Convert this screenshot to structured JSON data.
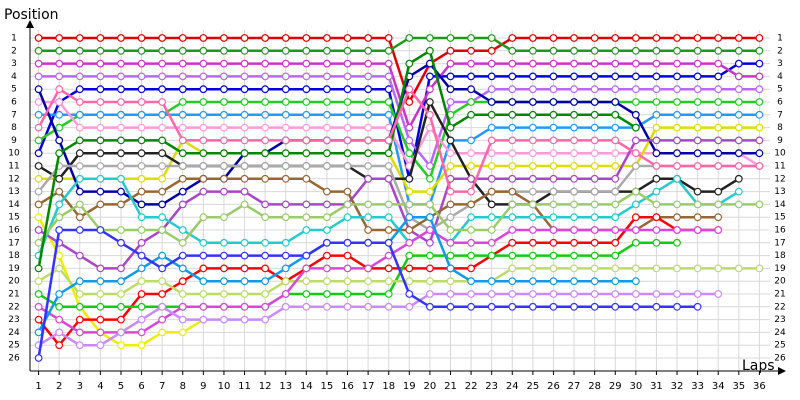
{
  "chart_data": {
    "type": "line",
    "ylabel": "Position",
    "xlabel": "Laps",
    "x": [
      1,
      2,
      3,
      4,
      5,
      6,
      7,
      8,
      9,
      10,
      11,
      12,
      13,
      14,
      15,
      16,
      17,
      18,
      19,
      20,
      21,
      22,
      23,
      24,
      25,
      26,
      27,
      28,
      29,
      30,
      31,
      32,
      33,
      34,
      35,
      36
    ],
    "xlim": [
      0,
      37
    ],
    "ylim": [
      0,
      27
    ],
    "y_inverted": true,
    "grid": true,
    "xticks": [
      1,
      2,
      3,
      4,
      5,
      6,
      7,
      8,
      9,
      10,
      11,
      12,
      13,
      14,
      15,
      16,
      17,
      18,
      19,
      20,
      21,
      22,
      23,
      24,
      25,
      26,
      27,
      28,
      29,
      30,
      31,
      32,
      33,
      34,
      35,
      36
    ],
    "yticks": [
      1,
      2,
      3,
      4,
      5,
      6,
      7,
      8,
      9,
      10,
      11,
      12,
      13,
      14,
      15,
      16,
      17,
      18,
      19,
      20,
      21,
      22,
      23,
      24,
      25,
      26
    ],
    "series": [
      {
        "color": "#e00000",
        "values": [
          1,
          1,
          1,
          1,
          1,
          1,
          1,
          1,
          1,
          1,
          1,
          1,
          1,
          1,
          1,
          1,
          1,
          1,
          6,
          3,
          2,
          2,
          2,
          1,
          1,
          1,
          1,
          1,
          1,
          1,
          1,
          1,
          1,
          1,
          1,
          1
        ]
      },
      {
        "color": "#1a9a1a",
        "values": [
          2,
          2,
          2,
          2,
          2,
          2,
          2,
          2,
          2,
          2,
          2,
          2,
          2,
          2,
          2,
          2,
          2,
          2,
          1,
          1,
          1,
          1,
          1,
          2,
          2,
          2,
          2,
          2,
          2,
          2,
          2,
          2,
          2,
          2,
          2,
          2
        ]
      },
      {
        "color": "#0000e0",
        "values": [
          10,
          6,
          5,
          5,
          5,
          5,
          5,
          5,
          5,
          5,
          5,
          5,
          5,
          5,
          5,
          5,
          5,
          5,
          12,
          4,
          4,
          4,
          4,
          4,
          4,
          4,
          4,
          4,
          4,
          4,
          4,
          4,
          4,
          4,
          3,
          3
        ]
      },
      {
        "color": "#cc33cc",
        "values": [
          3,
          3,
          3,
          3,
          3,
          3,
          3,
          3,
          3,
          3,
          3,
          3,
          3,
          3,
          3,
          3,
          3,
          3,
          8,
          5,
          3,
          3,
          3,
          3,
          3,
          3,
          3,
          3,
          3,
          3,
          3,
          3,
          3,
          3,
          4,
          4
        ]
      },
      {
        "color": "#bb66ff",
        "values": [
          4,
          4,
          4,
          4,
          4,
          4,
          4,
          4,
          4,
          4,
          4,
          4,
          4,
          4,
          4,
          4,
          4,
          4,
          9,
          11,
          6,
          6,
          5,
          5,
          5,
          5,
          5,
          5,
          5,
          5,
          5,
          5,
          5,
          5,
          5,
          5
        ]
      },
      {
        "color": "#22cc22",
        "values": [
          9,
          8,
          7,
          7,
          7,
          7,
          7,
          6,
          6,
          6,
          6,
          6,
          6,
          6,
          6,
          6,
          6,
          6,
          10,
          12,
          7,
          6,
          6,
          6,
          6,
          6,
          6,
          6,
          6,
          6,
          6,
          6,
          6,
          6,
          6,
          6
        ]
      },
      {
        "color": "#2299ff",
        "values": [
          7,
          7,
          7,
          7,
          7,
          7,
          7,
          7,
          7,
          7,
          7,
          7,
          7,
          7,
          7,
          7,
          7,
          7,
          14,
          14,
          9,
          9,
          8,
          8,
          8,
          8,
          8,
          8,
          8,
          8,
          7,
          7,
          7,
          7,
          7,
          7
        ]
      },
      {
        "color": "#ff99dd",
        "values": [
          6,
          6,
          8,
          8,
          8,
          8,
          8,
          8,
          8,
          8,
          8,
          8,
          8,
          8,
          8,
          8,
          8,
          8,
          11,
          8,
          10,
          10,
          10,
          10,
          10,
          10,
          10,
          10,
          10,
          10,
          10,
          10,
          10,
          10,
          10,
          11
        ]
      },
      {
        "color": "#eeee00",
        "values": [
          15,
          18,
          22,
          24,
          25,
          25,
          24,
          24,
          23,
          null,
          null,
          null,
          null,
          null,
          null,
          null,
          null,
          null,
          null,
          null,
          null,
          null,
          null,
          null,
          null,
          null,
          null,
          null,
          null,
          null,
          null,
          null,
          null,
          null,
          null,
          null
        ]
      },
      {
        "color": "#dddd00",
        "values": [
          12,
          12,
          12,
          12,
          12,
          12,
          12,
          9,
          10,
          10,
          10,
          10,
          10,
          10,
          10,
          10,
          10,
          10,
          13,
          13,
          11,
          11,
          11,
          11,
          11,
          11,
          11,
          11,
          11,
          11,
          8,
          8,
          8,
          8,
          8,
          8
        ]
      },
      {
        "color": "#0000aa",
        "values": [
          5,
          9,
          13,
          13,
          13,
          14,
          14,
          13,
          12,
          12,
          10,
          10,
          9,
          9,
          9,
          9,
          9,
          9,
          4,
          3,
          5,
          5,
          6,
          6,
          6,
          6,
          6,
          6,
          6,
          7,
          10,
          10,
          10,
          10,
          10,
          10
        ]
      },
      {
        "color": "#222222",
        "values": [
          11,
          12,
          10,
          10,
          10,
          10,
          10,
          11,
          11,
          11,
          11,
          11,
          11,
          11,
          11,
          11,
          12,
          12,
          12,
          6,
          9,
          12,
          14,
          14,
          14,
          13,
          13,
          13,
          13,
          13,
          12,
          12,
          13,
          13,
          12,
          null
        ]
      },
      {
        "color": "#aa44cc",
        "values": [
          16,
          17,
          18,
          19,
          19,
          17,
          16,
          14,
          13,
          13,
          13,
          14,
          14,
          14,
          14,
          14,
          12,
          12,
          16,
          17,
          12,
          12,
          12,
          12,
          12,
          12,
          12,
          12,
          12,
          9,
          9,
          9,
          9,
          9,
          9,
          9
        ]
      },
      {
        "color": "#aaaaaa",
        "values": [
          13,
          11,
          11,
          11,
          11,
          11,
          11,
          11,
          11,
          11,
          11,
          11,
          11,
          11,
          11,
          11,
          11,
          11,
          15,
          16,
          15,
          14,
          13,
          13,
          13,
          13,
          13,
          13,
          13,
          11,
          11,
          11,
          11,
          11,
          11,
          11
        ]
      },
      {
        "color": "#996633",
        "values": [
          14,
          13,
          15,
          14,
          14,
          13,
          13,
          12,
          12,
          12,
          12,
          12,
          12,
          12,
          13,
          13,
          16,
          16,
          16,
          15,
          14,
          14,
          13,
          13,
          14,
          16,
          16,
          16,
          16,
          16,
          15,
          15,
          15,
          15,
          null,
          null
        ]
      },
      {
        "color": "#22cccc",
        "values": [
          18,
          14,
          12,
          12,
          12,
          15,
          15,
          16,
          17,
          17,
          17,
          17,
          17,
          16,
          16,
          15,
          15,
          15,
          17,
          16,
          17,
          15,
          15,
          15,
          15,
          15,
          15,
          15,
          15,
          14,
          13,
          12,
          14,
          14,
          13,
          null
        ]
      },
      {
        "color": "#99cc66",
        "values": [
          17,
          15,
          14,
          16,
          16,
          16,
          16,
          17,
          15,
          15,
          14,
          15,
          15,
          15,
          15,
          14,
          14,
          14,
          14,
          14,
          16,
          16,
          16,
          14,
          14,
          14,
          14,
          14,
          14,
          13,
          14,
          14,
          14,
          14,
          14,
          14
        ]
      },
      {
        "color": "#ff0000",
        "values": [
          23,
          25,
          23,
          23,
          23,
          21,
          21,
          20,
          19,
          19,
          19,
          19,
          20,
          19,
          18,
          18,
          19,
          19,
          19,
          19,
          19,
          19,
          18,
          17,
          17,
          17,
          17,
          17,
          17,
          15,
          15,
          16,
          16,
          16,
          null,
          null
        ]
      },
      {
        "color": "#11cc11",
        "values": [
          21,
          22,
          22,
          22,
          22,
          22,
          22,
          22,
          22,
          22,
          22,
          22,
          21,
          21,
          21,
          21,
          21,
          21,
          18,
          18,
          18,
          18,
          18,
          18,
          18,
          18,
          18,
          18,
          18,
          17,
          17,
          17,
          null,
          null,
          null,
          null
        ]
      },
      {
        "color": "#bbdd66",
        "values": [
          20,
          19,
          21,
          21,
          21,
          20,
          20,
          21,
          21,
          21,
          21,
          21,
          20,
          20,
          20,
          20,
          20,
          20,
          20,
          20,
          20,
          20,
          20,
          19,
          19,
          19,
          19,
          19,
          19,
          19,
          19,
          19,
          19,
          19,
          19,
          19
        ]
      },
      {
        "color": "#dd44dd",
        "values": [
          22,
          23,
          24,
          24,
          24,
          24,
          23,
          22,
          22,
          22,
          22,
          22,
          21,
          19,
          19,
          19,
          19,
          18,
          17,
          16,
          17,
          17,
          17,
          16,
          16,
          16,
          16,
          16,
          16,
          16,
          16,
          16,
          16,
          16,
          null,
          null
        ]
      },
      {
        "color": "#1199ee",
        "values": [
          24,
          21,
          20,
          20,
          20,
          19,
          18,
          19,
          20,
          20,
          20,
          20,
          19,
          18,
          17,
          17,
          17,
          17,
          15,
          15,
          19,
          20,
          20,
          20,
          20,
          20,
          20,
          20,
          20,
          20,
          null,
          null,
          null,
          null,
          null,
          null
        ]
      },
      {
        "color": "#cc88ff",
        "values": [
          25,
          24,
          25,
          25,
          24,
          23,
          22,
          23,
          23,
          23,
          23,
          23,
          22,
          22,
          22,
          22,
          22,
          22,
          22,
          21,
          21,
          21,
          21,
          21,
          21,
          21,
          21,
          21,
          21,
          21,
          21,
          21,
          21,
          21,
          null,
          null
        ]
      },
      {
        "color": "#3333ff",
        "values": [
          26,
          16,
          16,
          16,
          17,
          18,
          19,
          18,
          18,
          18,
          18,
          18,
          18,
          18,
          17,
          17,
          17,
          17,
          21,
          22,
          22,
          22,
          22,
          22,
          22,
          22,
          22,
          22,
          22,
          22,
          22,
          22,
          22,
          null,
          null,
          null
        ]
      },
      {
        "color": "#008800",
        "values": [
          19,
          10,
          9,
          9,
          9,
          9,
          9,
          10,
          10,
          10,
          10,
          10,
          10,
          10,
          10,
          10,
          10,
          10,
          3,
          2,
          8,
          7,
          7,
          7,
          7,
          7,
          7,
          7,
          7,
          8,
          null,
          null,
          null,
          null,
          null,
          null
        ]
      },
      {
        "color": "#ff66aa",
        "values": [
          8,
          5,
          6,
          6,
          6,
          6,
          6,
          9,
          9,
          9,
          9,
          9,
          9,
          9,
          9,
          9,
          9,
          9,
          5,
          7,
          13,
          13,
          9,
          9,
          9,
          9,
          9,
          9,
          9,
          10,
          11,
          11,
          11,
          11,
          11,
          11
        ]
      }
    ]
  }
}
